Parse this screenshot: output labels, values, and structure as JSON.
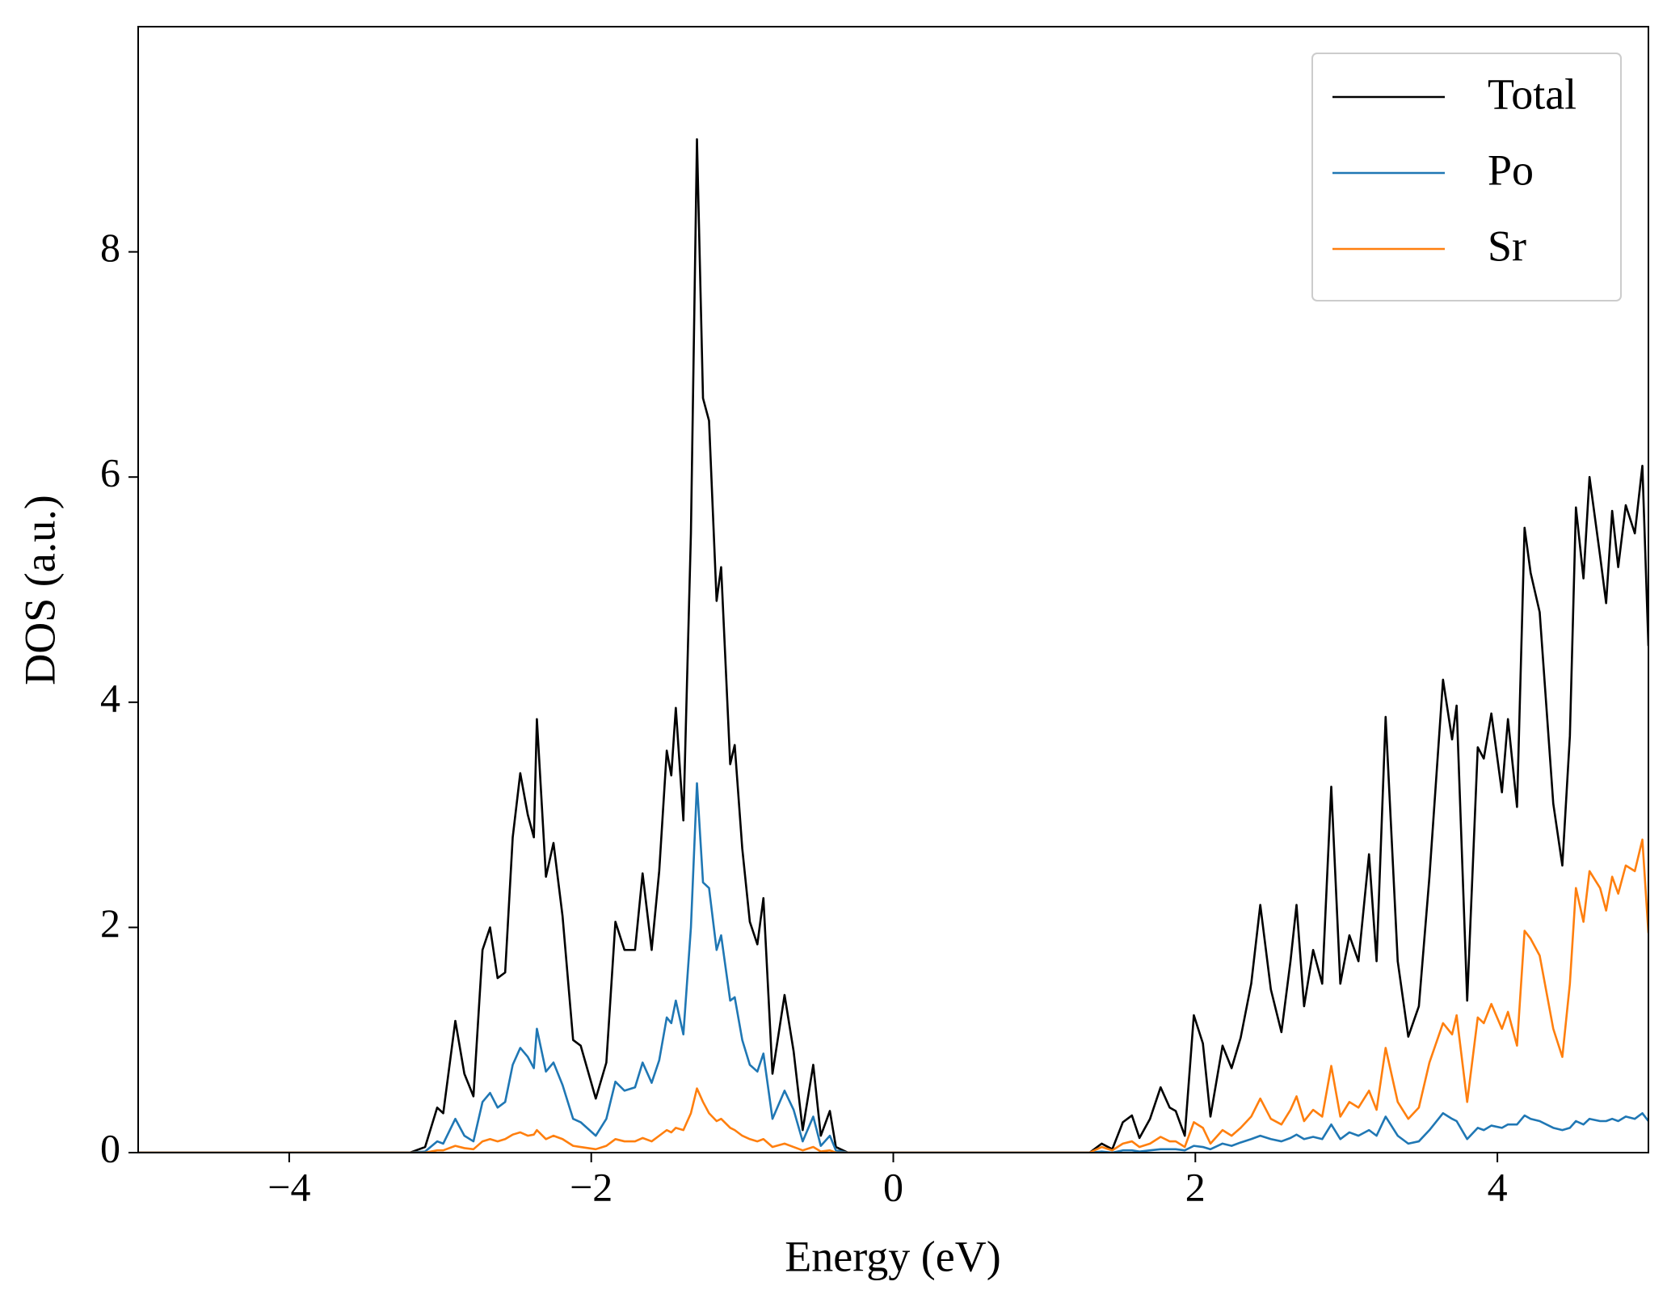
{
  "chart_data": {
    "type": "line",
    "xlabel": "Energy (eV)",
    "ylabel": "DOS (a.u.)",
    "xlim": [
      -5,
      5
    ],
    "ylim": [
      0,
      10
    ],
    "xticks": [
      {
        "value": -4,
        "label": "−4"
      },
      {
        "value": -2,
        "label": "−2"
      },
      0,
      2,
      4
    ],
    "yticks": [
      0,
      2,
      4,
      6,
      8
    ],
    "grid": false,
    "legend": "upper right",
    "x": [
      -5,
      -3.2,
      -3.1,
      -3.02,
      -2.98,
      -2.9,
      -2.84,
      -2.78,
      -2.72,
      -2.67,
      -2.62,
      -2.57,
      -2.52,
      -2.47,
      -2.42,
      -2.38,
      -2.36,
      -2.3,
      -2.25,
      -2.19,
      -2.12,
      -2.07,
      -1.97,
      -1.9,
      -1.84,
      -1.78,
      -1.71,
      -1.66,
      -1.6,
      -1.55,
      -1.5,
      -1.47,
      -1.44,
      -1.39,
      -1.34,
      -1.3,
      -1.26,
      -1.22,
      -1.17,
      -1.14,
      -1.08,
      -1.05,
      -1.0,
      -0.95,
      -0.9,
      -0.86,
      -0.8,
      -0.72,
      -0.66,
      -0.6,
      -0.53,
      -0.48,
      -0.42,
      -0.38,
      -0.3,
      1.3,
      1.38,
      1.45,
      1.52,
      1.58,
      1.63,
      1.7,
      1.77,
      1.83,
      1.87,
      1.93,
      1.99,
      2.05,
      2.1,
      2.18,
      2.24,
      2.3,
      2.37,
      2.43,
      2.5,
      2.57,
      2.63,
      2.67,
      2.72,
      2.78,
      2.84,
      2.9,
      2.96,
      3.02,
      3.08,
      3.15,
      3.2,
      3.26,
      3.34,
      3.41,
      3.48,
      3.55,
      3.64,
      3.7,
      3.73,
      3.8,
      3.87,
      3.91,
      3.96,
      4.03,
      4.07,
      4.13,
      4.18,
      4.22,
      4.28,
      4.37,
      4.43,
      4.48,
      4.52,
      4.57,
      4.61,
      4.68,
      4.72,
      4.76,
      4.8,
      4.85,
      4.91,
      4.96,
      5.0
    ],
    "series": [
      {
        "name": "Total",
        "color": "#000000",
        "values": [
          0,
          0,
          0.05,
          0.4,
          0.35,
          1.17,
          0.7,
          0.5,
          1.8,
          2.0,
          1.55,
          1.6,
          2.8,
          3.37,
          3.0,
          2.8,
          3.85,
          2.45,
          2.75,
          2.1,
          1.0,
          0.95,
          0.48,
          0.8,
          2.05,
          1.8,
          1.8,
          2.48,
          1.8,
          2.5,
          3.57,
          3.35,
          3.95,
          2.95,
          5.5,
          9.0,
          6.7,
          6.5,
          4.9,
          5.2,
          3.45,
          3.62,
          2.7,
          2.05,
          1.85,
          2.26,
          0.7,
          1.4,
          0.9,
          0.2,
          0.78,
          0.15,
          0.37,
          0.05,
          0,
          0,
          0.08,
          0.03,
          0.27,
          0.33,
          0.13,
          0.3,
          0.58,
          0.4,
          0.37,
          0.15,
          1.22,
          0.97,
          0.32,
          0.95,
          0.75,
          1.02,
          1.5,
          2.2,
          1.45,
          1.07,
          1.7,
          2.2,
          1.3,
          1.8,
          1.5,
          3.25,
          1.5,
          1.93,
          1.7,
          2.65,
          1.7,
          3.87,
          1.7,
          1.03,
          1.3,
          2.45,
          4.2,
          3.67,
          3.97,
          1.35,
          3.6,
          3.5,
          3.9,
          3.2,
          3.85,
          3.07,
          5.55,
          5.15,
          4.8,
          3.1,
          2.55,
          3.7,
          5.73,
          5.1,
          6.0,
          5.3,
          4.88,
          5.7,
          5.2,
          5.75,
          5.5,
          6.1,
          4.5
        ]
      },
      {
        "name": "Po",
        "color": "#1f77b4",
        "values": [
          0,
          0,
          0.01,
          0.1,
          0.08,
          0.3,
          0.15,
          0.1,
          0.45,
          0.53,
          0.4,
          0.45,
          0.78,
          0.93,
          0.85,
          0.75,
          1.1,
          0.72,
          0.8,
          0.6,
          0.3,
          0.27,
          0.15,
          0.3,
          0.63,
          0.55,
          0.58,
          0.8,
          0.62,
          0.82,
          1.2,
          1.15,
          1.35,
          1.05,
          2.0,
          3.28,
          2.4,
          2.35,
          1.8,
          1.93,
          1.35,
          1.38,
          1.0,
          0.78,
          0.72,
          0.88,
          0.3,
          0.55,
          0.38,
          0.1,
          0.32,
          0.06,
          0.15,
          0.02,
          0,
          0,
          0.01,
          0,
          0.02,
          0.02,
          0.01,
          0.02,
          0.03,
          0.03,
          0.03,
          0.02,
          0.06,
          0.05,
          0.03,
          0.08,
          0.06,
          0.09,
          0.12,
          0.15,
          0.12,
          0.1,
          0.13,
          0.16,
          0.12,
          0.14,
          0.12,
          0.25,
          0.12,
          0.18,
          0.15,
          0.2,
          0.15,
          0.32,
          0.15,
          0.08,
          0.1,
          0.2,
          0.35,
          0.3,
          0.28,
          0.12,
          0.22,
          0.2,
          0.24,
          0.22,
          0.25,
          0.25,
          0.33,
          0.3,
          0.28,
          0.22,
          0.2,
          0.22,
          0.28,
          0.25,
          0.3,
          0.28,
          0.28,
          0.3,
          0.28,
          0.32,
          0.3,
          0.35,
          0.28
        ]
      },
      {
        "name": "Sr",
        "color": "#ff7f0e",
        "values": [
          0,
          0,
          0,
          0.02,
          0.02,
          0.06,
          0.04,
          0.03,
          0.1,
          0.12,
          0.1,
          0.12,
          0.16,
          0.18,
          0.15,
          0.16,
          0.2,
          0.12,
          0.15,
          0.12,
          0.06,
          0.05,
          0.03,
          0.06,
          0.12,
          0.1,
          0.1,
          0.13,
          0.1,
          0.15,
          0.2,
          0.18,
          0.22,
          0.2,
          0.35,
          0.57,
          0.45,
          0.35,
          0.28,
          0.3,
          0.22,
          0.2,
          0.15,
          0.12,
          0.1,
          0.12,
          0.05,
          0.08,
          0.05,
          0.02,
          0.05,
          0.01,
          0.02,
          0,
          0,
          0,
          0.05,
          0.02,
          0.08,
          0.1,
          0.05,
          0.08,
          0.14,
          0.1,
          0.1,
          0.05,
          0.27,
          0.22,
          0.08,
          0.2,
          0.15,
          0.22,
          0.32,
          0.48,
          0.3,
          0.25,
          0.38,
          0.5,
          0.28,
          0.38,
          0.32,
          0.77,
          0.32,
          0.45,
          0.4,
          0.55,
          0.38,
          0.93,
          0.45,
          0.3,
          0.4,
          0.8,
          1.15,
          1.05,
          1.22,
          0.45,
          1.2,
          1.15,
          1.32,
          1.1,
          1.25,
          0.95,
          1.97,
          1.9,
          1.75,
          1.1,
          0.85,
          1.5,
          2.35,
          2.05,
          2.5,
          2.35,
          2.15,
          2.45,
          2.3,
          2.55,
          2.5,
          2.78,
          1.95
        ]
      }
    ]
  }
}
